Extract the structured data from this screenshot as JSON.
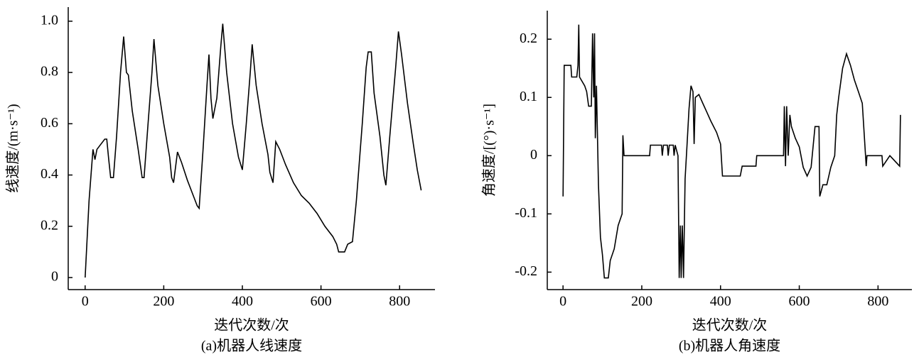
{
  "chart_data": [
    {
      "type": "line",
      "caption": "(a)机器人线速度",
      "xlabel": "迭代次数/次",
      "ylabel": "线速度/(m·s⁻¹)",
      "color": "#000000",
      "xlim": [
        -43,
        890
      ],
      "ylim": [
        -0.047,
        1.055
      ],
      "xticks": [
        0,
        200,
        400,
        600,
        800
      ],
      "yticks": [
        0,
        0.2,
        0.4,
        0.6,
        0.8,
        {
          "value": 1,
          "label": "1.0"
        }
      ],
      "x": [
        0,
        10,
        20,
        25,
        30,
        40,
        50,
        55,
        60,
        65,
        72,
        80,
        90,
        98,
        105,
        110,
        120,
        135,
        145,
        150,
        160,
        170,
        175,
        185,
        200,
        215,
        220,
        225,
        235,
        245,
        260,
        275,
        285,
        290,
        300,
        310,
        315,
        320,
        325,
        335,
        345,
        350,
        360,
        375,
        390,
        400,
        410,
        420,
        425,
        435,
        450,
        465,
        470,
        478,
        485,
        495,
        510,
        530,
        550,
        570,
        590,
        610,
        630,
        640,
        645,
        660,
        668,
        680,
        690,
        705,
        715,
        720,
        728,
        735,
        750,
        760,
        765,
        775,
        790,
        797,
        805,
        820,
        835,
        845,
        855
      ],
      "values": [
        0,
        0.3,
        0.5,
        0.46,
        0.5,
        0.52,
        0.54,
        0.54,
        0.46,
        0.39,
        0.39,
        0.55,
        0.8,
        0.94,
        0.8,
        0.79,
        0.65,
        0.5,
        0.39,
        0.39,
        0.6,
        0.8,
        0.93,
        0.75,
        0.6,
        0.47,
        0.39,
        0.37,
        0.49,
        0.45,
        0.38,
        0.32,
        0.28,
        0.27,
        0.5,
        0.75,
        0.87,
        0.7,
        0.62,
        0.7,
        0.9,
        0.99,
        0.8,
        0.6,
        0.47,
        0.42,
        0.6,
        0.8,
        0.91,
        0.75,
        0.6,
        0.48,
        0.41,
        0.37,
        0.53,
        0.5,
        0.44,
        0.37,
        0.32,
        0.29,
        0.25,
        0.2,
        0.16,
        0.13,
        0.1,
        0.1,
        0.13,
        0.14,
        0.3,
        0.6,
        0.82,
        0.88,
        0.88,
        0.72,
        0.55,
        0.4,
        0.36,
        0.55,
        0.82,
        0.96,
        0.87,
        0.68,
        0.52,
        0.42,
        0.34
      ]
    },
    {
      "type": "line",
      "caption": "(b)机器人角速度",
      "xlabel": "迭代次数/次",
      "ylabel": "角速度/[(°)·s⁻¹]",
      "color": "#000000",
      "xlim": [
        -40,
        886
      ],
      "ylim": [
        -0.23,
        0.249
      ],
      "xticks": [
        0,
        200,
        400,
        600,
        800
      ],
      "yticks": [
        -0.2,
        -0.1,
        0,
        0.1,
        0.2
      ],
      "x": [
        0,
        3,
        20,
        22,
        35,
        38,
        40,
        42,
        55,
        60,
        65,
        72,
        75,
        78,
        80,
        82,
        85,
        90,
        95,
        100,
        105,
        115,
        120,
        130,
        140,
        150,
        152,
        155,
        220,
        222,
        250,
        252,
        255,
        265,
        267,
        270,
        280,
        282,
        285,
        292,
        295,
        298,
        300,
        303,
        306,
        310,
        315,
        320,
        325,
        330,
        333,
        336,
        345,
        355,
        365,
        375,
        390,
        400,
        405,
        450,
        455,
        490,
        492,
        560,
        562,
        565,
        568,
        572,
        576,
        580,
        590,
        600,
        610,
        620,
        630,
        640,
        650,
        652,
        660,
        670,
        680,
        690,
        695,
        700,
        710,
        720,
        730,
        740,
        750,
        760,
        770,
        772,
        810,
        812,
        830,
        855,
        857
      ],
      "values": [
        -0.07,
        0.155,
        0.155,
        0.135,
        0.135,
        0.155,
        0.225,
        0.135,
        0.12,
        0.11,
        0.085,
        0.085,
        0.21,
        0.1,
        0.21,
        0.03,
        0.12,
        -0.05,
        -0.14,
        -0.17,
        -0.21,
        -0.21,
        -0.18,
        -0.16,
        -0.12,
        -0.1,
        0.035,
        0,
        0,
        0.018,
        0.018,
        0,
        0.018,
        0.018,
        0,
        0.018,
        0.018,
        0,
        0.018,
        0,
        -0.21,
        -0.12,
        -0.21,
        -0.12,
        -0.21,
        -0.04,
        0.02,
        0.08,
        0.12,
        0.11,
        0.02,
        0.1,
        0.105,
        0.09,
        0.075,
        0.06,
        0.04,
        0.02,
        -0.035,
        -0.035,
        -0.018,
        -0.018,
        0,
        0,
        0.085,
        -0.018,
        0.085,
        0,
        0.07,
        0.05,
        0.03,
        0.015,
        -0.02,
        -0.035,
        -0.02,
        0.05,
        0.05,
        -0.07,
        -0.05,
        -0.05,
        -0.02,
        0,
        0.07,
        0.1,
        0.15,
        0.175,
        0.155,
        0.13,
        0.11,
        0.09,
        -0.018,
        0,
        0,
        -0.018,
        0,
        -0.018,
        0.07
      ]
    }
  ]
}
